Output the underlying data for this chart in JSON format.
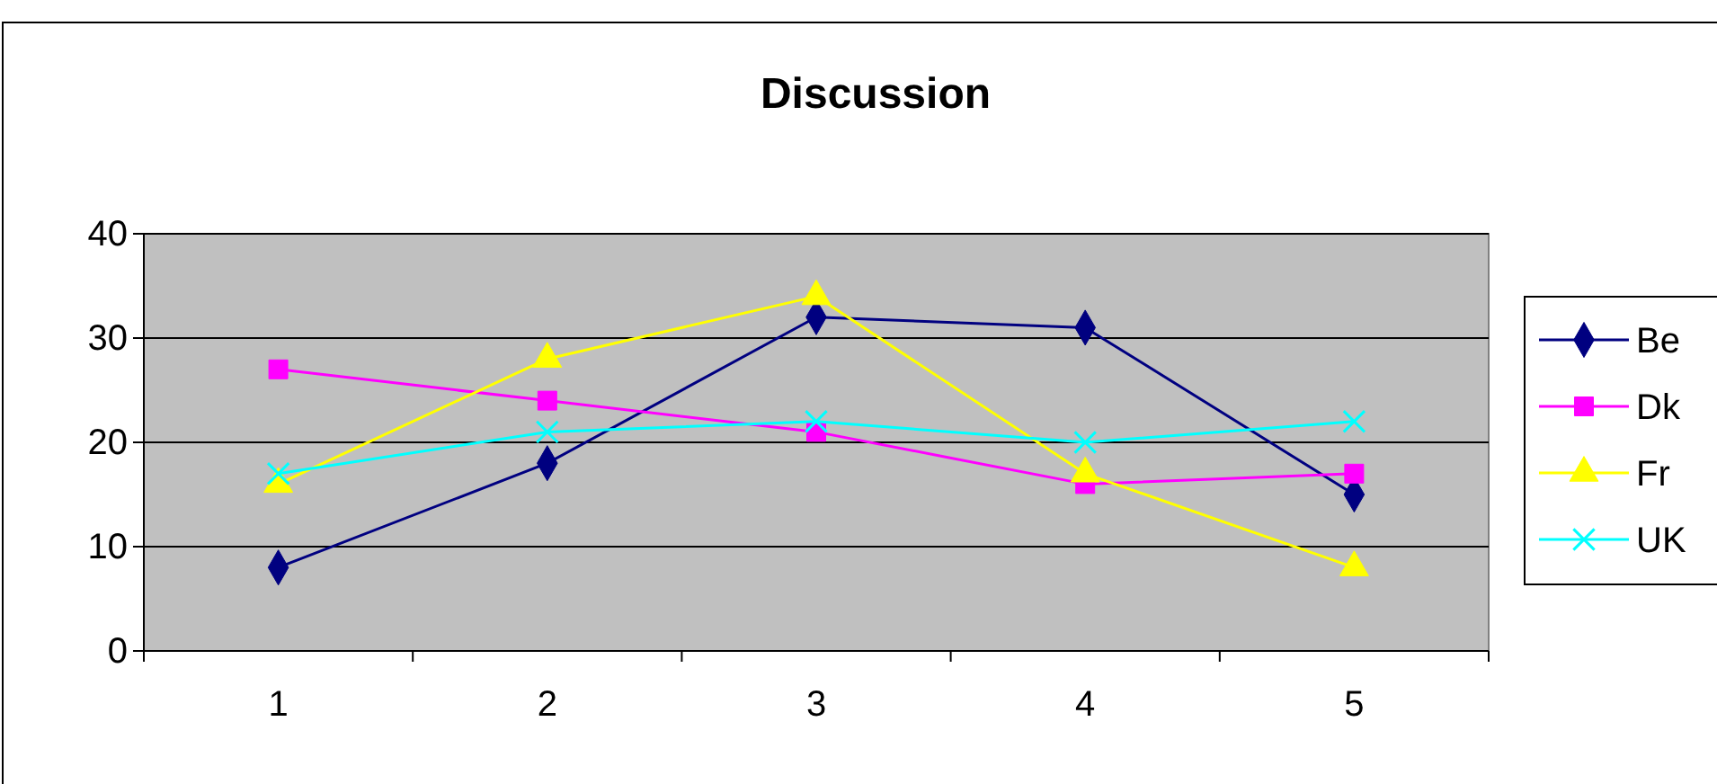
{
  "chart_data": {
    "type": "line",
    "title": "Discussion",
    "categories": [
      "1",
      "2",
      "3",
      "4",
      "5"
    ],
    "series": [
      {
        "name": "Be",
        "color": "#000080",
        "marker": "diamond",
        "values": [
          8,
          18,
          32,
          31,
          15
        ]
      },
      {
        "name": "Dk",
        "color": "#ff00ff",
        "marker": "square",
        "values": [
          27,
          24,
          21,
          16,
          17
        ]
      },
      {
        "name": "Fr",
        "color": "#ffff00",
        "marker": "triangle",
        "values": [
          16,
          28,
          34,
          17,
          8
        ]
      },
      {
        "name": "UK",
        "color": "#00ffff",
        "marker": "cross",
        "values": [
          17,
          21,
          22,
          20,
          22
        ]
      }
    ],
    "ylim": [
      0,
      40
    ],
    "yticks": [
      0,
      10,
      20,
      30,
      40
    ],
    "grid": "y",
    "legend": "right"
  }
}
